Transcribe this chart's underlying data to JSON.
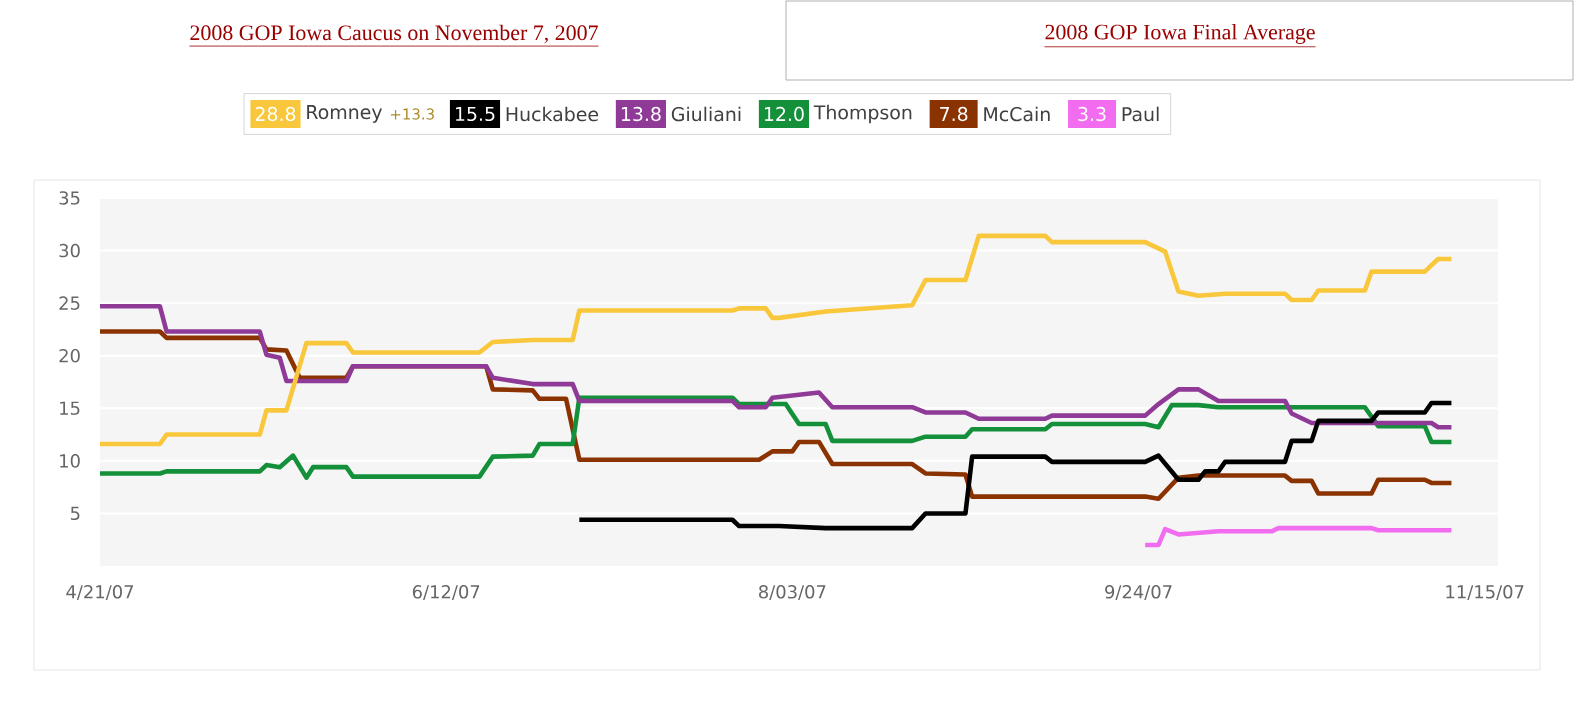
{
  "chart_data": {
    "type": "line",
    "title": "2008 GOP Iowa Caucus on November 7, 2007",
    "subtitle": "2008 GOP Iowa Final Average",
    "annotations": [
      "28.8",
      "15.5",
      "13.8",
      "12.0",
      "7.8",
      "3.3",
      "+13.3"
    ],
    "xlim": [
      "2007-04-21",
      "2007-11-17"
    ],
    "xticks": [
      {
        "value": "2007-04-21",
        "label": "4/21/07"
      },
      {
        "value": "2007-06-12",
        "label": "6/12/07"
      },
      {
        "value": "2007-08-03",
        "label": "8/03/07"
      },
      {
        "value": "2007-09-24",
        "label": "9/24/07"
      },
      {
        "value": "2007-11-15",
        "label": "11/15/07"
      }
    ],
    "ylim": [
      0,
      35
    ],
    "yticks": [
      5,
      10,
      15,
      20,
      25,
      30,
      35
    ],
    "grid": "y",
    "legend": "top",
    "marker": "none",
    "line_style": "solid",
    "series": [
      {
        "name": "Romney",
        "color": "#f9c73b",
        "x": [
          "2007-04-21",
          "2007-04-30",
          "2007-05-01",
          "2007-05-15",
          "2007-05-16",
          "2007-05-19",
          "2007-05-22",
          "2007-05-28",
          "2007-05-29",
          "2007-06-17",
          "2007-06-19",
          "2007-06-25",
          "2007-07-01",
          "2007-07-02",
          "2007-07-25",
          "2007-07-26",
          "2007-07-30",
          "2007-07-31",
          "2007-08-01",
          "2007-08-08",
          "2007-08-21",
          "2007-08-23",
          "2007-08-29",
          "2007-08-31",
          "2007-09-10",
          "2007-09-11",
          "2007-09-25",
          "2007-09-28",
          "2007-09-30",
          "2007-10-03",
          "2007-10-07",
          "2007-10-16",
          "2007-10-17",
          "2007-10-20",
          "2007-10-21",
          "2007-10-28",
          "2007-10-29",
          "2007-11-06",
          "2007-11-08",
          "2007-11-10"
        ],
        "values": [
          11.6,
          11.6,
          12.5,
          12.5,
          14.8,
          14.8,
          21.2,
          21.2,
          20.3,
          20.3,
          21.3,
          21.5,
          21.5,
          24.3,
          24.3,
          24.5,
          24.5,
          23.6,
          23.6,
          24.2,
          24.8,
          27.2,
          27.2,
          31.4,
          31.4,
          30.8,
          30.8,
          29.9,
          26.1,
          25.7,
          25.9,
          25.9,
          25.3,
          25.3,
          26.2,
          26.2,
          28.0,
          28.0,
          29.2,
          29.2
        ]
      },
      {
        "name": "Huckabee",
        "color": "#000000",
        "x": [
          "2007-07-02",
          "2007-07-25",
          "2007-07-26",
          "2007-08-01",
          "2007-08-08",
          "2007-08-21",
          "2007-08-23",
          "2007-08-29",
          "2007-08-30",
          "2007-09-10",
          "2007-09-11",
          "2007-09-25",
          "2007-09-27",
          "2007-09-30",
          "2007-10-03",
          "2007-10-04",
          "2007-10-06",
          "2007-10-07",
          "2007-10-16",
          "2007-10-17",
          "2007-10-20",
          "2007-10-21",
          "2007-10-29",
          "2007-10-30",
          "2007-11-06",
          "2007-11-07",
          "2007-11-10"
        ],
        "values": [
          4.4,
          4.4,
          3.8,
          3.8,
          3.6,
          3.6,
          5.0,
          5.0,
          10.4,
          10.4,
          9.9,
          9.9,
          10.5,
          8.2,
          8.2,
          9.0,
          9.0,
          9.9,
          9.9,
          11.9,
          11.9,
          13.8,
          13.8,
          14.6,
          14.6,
          15.5,
          15.5
        ]
      },
      {
        "name": "Giuliani",
        "color": "#8e3a96",
        "x": [
          "2007-04-21",
          "2007-04-30",
          "2007-05-01",
          "2007-05-15",
          "2007-05-16",
          "2007-05-18",
          "2007-05-19",
          "2007-05-28",
          "2007-05-29",
          "2007-06-18",
          "2007-06-19",
          "2007-06-25",
          "2007-07-01",
          "2007-07-02",
          "2007-07-25",
          "2007-07-26",
          "2007-07-30",
          "2007-07-31",
          "2007-08-07",
          "2007-08-09",
          "2007-08-21",
          "2007-08-23",
          "2007-08-29",
          "2007-08-31",
          "2007-09-10",
          "2007-09-11",
          "2007-09-25",
          "2007-09-27",
          "2007-09-30",
          "2007-10-03",
          "2007-10-06",
          "2007-10-16",
          "2007-10-17",
          "2007-10-20",
          "2007-11-07",
          "2007-11-08",
          "2007-11-10"
        ],
        "values": [
          24.7,
          24.7,
          22.3,
          22.3,
          20.1,
          19.8,
          17.6,
          17.6,
          19.0,
          19.0,
          17.9,
          17.3,
          17.3,
          15.7,
          15.7,
          15.1,
          15.1,
          16.0,
          16.5,
          15.1,
          15.1,
          14.6,
          14.6,
          14.0,
          14.0,
          14.3,
          14.3,
          15.4,
          16.8,
          16.8,
          15.7,
          15.7,
          14.5,
          13.6,
          13.6,
          13.2,
          13.2
        ]
      },
      {
        "name": "Thompson",
        "color": "#139039",
        "x": [
          "2007-04-21",
          "2007-04-30",
          "2007-05-01",
          "2007-05-15",
          "2007-05-16",
          "2007-05-18",
          "2007-05-20",
          "2007-05-22",
          "2007-05-23",
          "2007-05-28",
          "2007-05-29",
          "2007-06-17",
          "2007-06-19",
          "2007-06-25",
          "2007-06-26",
          "2007-07-01",
          "2007-07-02",
          "2007-07-25",
          "2007-07-26",
          "2007-08-02",
          "2007-08-04",
          "2007-08-08",
          "2007-08-09",
          "2007-08-21",
          "2007-08-23",
          "2007-08-29",
          "2007-08-30",
          "2007-09-10",
          "2007-09-11",
          "2007-09-25",
          "2007-09-27",
          "2007-09-29",
          "2007-10-03",
          "2007-10-06",
          "2007-10-28",
          "2007-10-30",
          "2007-11-06",
          "2007-11-07",
          "2007-11-10"
        ],
        "values": [
          8.8,
          8.8,
          9.0,
          9.0,
          9.6,
          9.4,
          10.5,
          8.4,
          9.4,
          9.4,
          8.5,
          8.5,
          10.4,
          10.5,
          11.6,
          11.6,
          16.0,
          16.0,
          15.4,
          15.4,
          13.5,
          13.5,
          11.9,
          11.9,
          12.3,
          12.3,
          13.0,
          13.0,
          13.5,
          13.5,
          13.2,
          15.3,
          15.3,
          15.1,
          15.1,
          13.3,
          13.3,
          11.8,
          11.8
        ]
      },
      {
        "name": "McCain",
        "color": "#8b3300",
        "x": [
          "2007-04-21",
          "2007-04-30",
          "2007-05-01",
          "2007-05-15",
          "2007-05-16",
          "2007-05-19",
          "2007-05-21",
          "2007-05-28",
          "2007-05-29",
          "2007-06-18",
          "2007-06-19",
          "2007-06-25",
          "2007-06-26",
          "2007-06-30",
          "2007-07-02",
          "2007-07-29",
          "2007-07-31",
          "2007-08-03",
          "2007-08-04",
          "2007-08-07",
          "2007-08-09",
          "2007-08-21",
          "2007-08-23",
          "2007-08-29",
          "2007-08-30",
          "2007-09-25",
          "2007-09-27",
          "2007-09-30",
          "2007-10-03",
          "2007-10-16",
          "2007-10-17",
          "2007-10-20",
          "2007-10-21",
          "2007-10-29",
          "2007-10-30",
          "2007-11-06",
          "2007-11-07",
          "2007-11-10"
        ],
        "values": [
          22.3,
          22.3,
          21.7,
          21.7,
          20.6,
          20.5,
          17.9,
          17.9,
          19.0,
          19.0,
          16.8,
          16.7,
          15.9,
          15.9,
          10.1,
          10.1,
          10.9,
          10.9,
          11.8,
          11.8,
          9.7,
          9.7,
          8.8,
          8.7,
          6.6,
          6.6,
          6.4,
          8.4,
          8.6,
          8.6,
          8.1,
          8.1,
          6.9,
          6.9,
          8.2,
          8.2,
          7.9,
          7.9
        ]
      },
      {
        "name": "Paul",
        "color": "#f26cf0",
        "x": [
          "2007-09-25",
          "2007-09-27",
          "2007-09-28",
          "2007-09-30",
          "2007-10-06",
          "2007-10-14",
          "2007-10-15",
          "2007-10-29",
          "2007-10-30",
          "2007-11-10"
        ],
        "values": [
          2.0,
          2.0,
          3.5,
          3.0,
          3.3,
          3.3,
          3.6,
          3.6,
          3.4,
          3.4
        ]
      }
    ]
  }
}
